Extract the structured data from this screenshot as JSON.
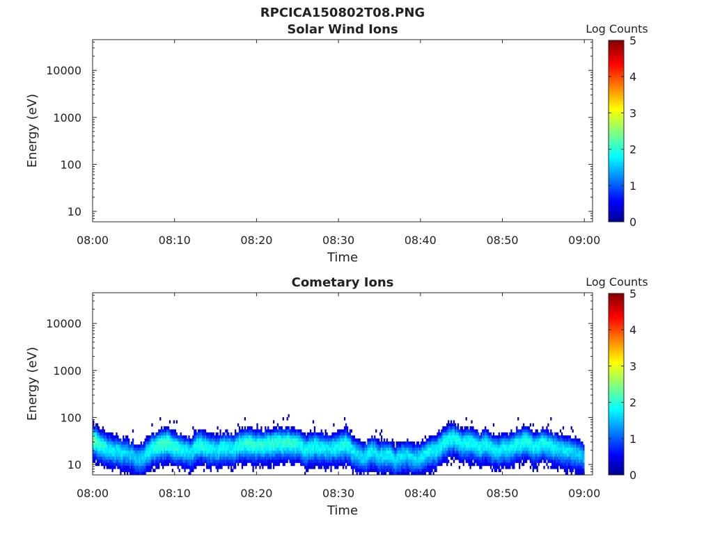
{
  "figure": {
    "title": "RPCICA150802T08.PNG"
  },
  "chart_data": [
    {
      "type": "heatmap",
      "title": "Solar Wind Ions",
      "xlabel": "Time",
      "ylabel": "Energy (eV)",
      "x_ticks": [
        "08:00",
        "08:10",
        "08:20",
        "08:30",
        "08:40",
        "08:50",
        "09:00"
      ],
      "xlim": [
        "08:00",
        "09:01"
      ],
      "y_scale": "log",
      "y_ticks": [
        10,
        100,
        1000,
        10000
      ],
      "y_tick_labels": [
        "10",
        "100",
        "1000",
        "10000"
      ],
      "ylim": [
        6,
        45000
      ],
      "colorbar": {
        "label": "Log Counts",
        "range": [
          0,
          5
        ],
        "ticks": [
          "0",
          "1",
          "2",
          "3",
          "4",
          "5"
        ],
        "colormap": "jet"
      },
      "series": []
    },
    {
      "type": "heatmap",
      "title": "Cometary Ions",
      "xlabel": "Time",
      "ylabel": "Energy (eV)",
      "x_ticks": [
        "08:00",
        "08:10",
        "08:20",
        "08:30",
        "08:40",
        "08:50",
        "09:00"
      ],
      "xlim": [
        "08:00",
        "09:01"
      ],
      "y_scale": "log",
      "y_ticks": [
        10,
        100,
        1000,
        10000
      ],
      "y_tick_labels": [
        "10",
        "100",
        "1000",
        "10000"
      ],
      "ylim": [
        6,
        45000
      ],
      "colorbar": {
        "label": "Log Counts",
        "range": [
          0,
          5
        ],
        "ticks": [
          "0",
          "1",
          "2",
          "3",
          "4",
          "5"
        ],
        "colormap": "jet"
      },
      "series": [
        {
          "minutes": [
            0,
            2,
            4,
            5,
            6,
            7,
            8,
            9,
            10,
            11,
            12,
            13,
            14,
            15,
            16,
            17,
            18,
            19,
            20,
            22,
            24,
            25,
            26,
            27,
            28,
            29,
            30,
            31,
            32,
            33,
            34,
            35,
            36,
            37,
            38,
            39,
            40,
            41,
            42,
            43,
            44,
            45,
            46,
            47,
            48,
            49,
            50,
            51,
            52,
            53,
            54,
            55,
            56,
            57,
            58,
            59,
            60
          ],
          "peak_energy_eV": [
            35,
            22,
            18,
            16,
            13,
            22,
            26,
            30,
            25,
            22,
            19,
            28,
            24,
            20,
            25,
            22,
            28,
            30,
            27,
            28,
            30,
            28,
            22,
            26,
            24,
            22,
            26,
            28,
            18,
            14,
            20,
            16,
            18,
            13,
            17,
            14,
            15,
            19,
            22,
            30,
            40,
            28,
            32,
            24,
            28,
            20,
            22,
            25,
            30,
            32,
            24,
            30,
            25,
            22,
            20,
            18,
            15
          ],
          "peak_log_counts": [
            2.3,
            1.8,
            1.6,
            1.5,
            1.6,
            1.9,
            2.1,
            2.2,
            2.0,
            1.8,
            1.7,
            2.0,
            1.9,
            1.7,
            1.9,
            1.8,
            2.0,
            2.1,
            2.0,
            2.1,
            2.1,
            2.0,
            1.8,
            1.9,
            1.8,
            1.7,
            1.9,
            2.0,
            1.7,
            1.6,
            1.8,
            1.7,
            1.8,
            1.6,
            1.7,
            1.6,
            1.7,
            1.8,
            1.8,
            1.9,
            1.9,
            1.8,
            1.9,
            1.8,
            1.9,
            1.7,
            1.8,
            1.8,
            1.9,
            2.0,
            1.8,
            1.9,
            1.8,
            1.7,
            1.7,
            1.6,
            1.5
          ]
        }
      ]
    }
  ]
}
